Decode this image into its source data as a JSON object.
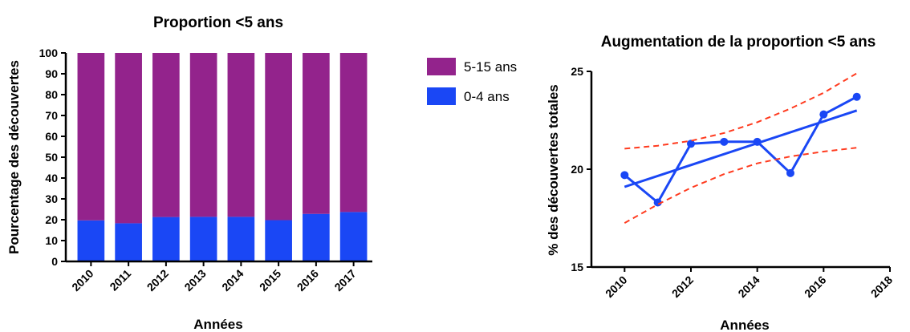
{
  "chart_data": [
    {
      "type": "bar",
      "stacked": true,
      "title": "Proportion <5 ans",
      "xlabel": "Années",
      "ylabel": "Pourcentage des découvertes",
      "categories": [
        "2010",
        "2011",
        "2012",
        "2013",
        "2014",
        "2015",
        "2016",
        "2017"
      ],
      "series": [
        {
          "name": "0-4 ans",
          "color": "#1a47f5",
          "values": [
            19.7,
            18.3,
            21.3,
            21.4,
            21.4,
            19.8,
            22.8,
            23.7
          ]
        },
        {
          "name": "5-15 ans",
          "color": "#93238c",
          "values": [
            80.3,
            81.7,
            78.7,
            78.6,
            78.6,
            80.2,
            77.2,
            76.3
          ]
        }
      ],
      "ylim": [
        0,
        100
      ],
      "yticks": [
        "0",
        "10",
        "20",
        "30",
        "40",
        "50",
        "60",
        "70",
        "80",
        "90",
        "100"
      ],
      "legend": "right",
      "grid": false
    },
    {
      "type": "line",
      "title": "Augmentation de la proportion <5 ans",
      "xlabel": "Années",
      "ylabel": "% des découvertes totales",
      "xlim": [
        2009,
        2018
      ],
      "ylim": [
        15,
        25
      ],
      "xticks": [
        "2010",
        "2012",
        "2014",
        "2016",
        "2018"
      ],
      "yticks": [
        "15",
        "20",
        "25"
      ],
      "grid": false,
      "series": [
        {
          "role": "observed",
          "style": "solid with markers",
          "color": "#1a47f5",
          "x": [
            2010,
            2011,
            2012,
            2013,
            2014,
            2015,
            2016,
            2017
          ],
          "y": [
            19.7,
            18.3,
            21.3,
            21.4,
            21.4,
            19.8,
            22.8,
            23.7
          ]
        },
        {
          "role": "regression",
          "style": "solid",
          "color": "#1a47f5",
          "x": [
            2010,
            2017
          ],
          "y": [
            19.1,
            23.0
          ]
        },
        {
          "role": "upper band",
          "style": "dashed",
          "color": "#ff3b1f",
          "x": [
            2010,
            2011,
            2012,
            2013,
            2014,
            2015,
            2016,
            2017
          ],
          "y": [
            21.05,
            21.2,
            21.45,
            21.85,
            22.4,
            23.1,
            23.9,
            24.9
          ]
        },
        {
          "role": "lower band",
          "style": "dashed",
          "color": "#ff3b1f",
          "x": [
            2010,
            2011,
            2012,
            2013,
            2014,
            2015,
            2016,
            2017
          ],
          "y": [
            17.25,
            18.2,
            19.05,
            19.75,
            20.3,
            20.65,
            20.9,
            21.1
          ]
        }
      ]
    }
  ]
}
